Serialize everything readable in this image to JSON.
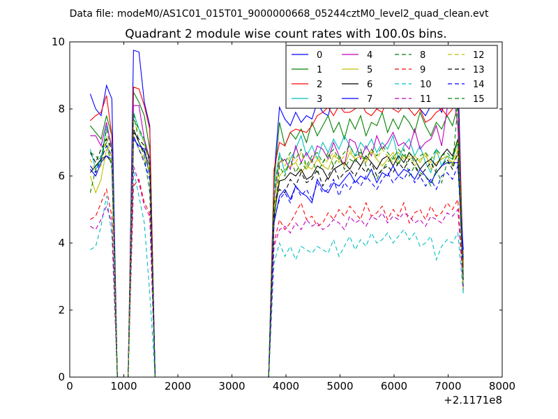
{
  "suptitle": "Data file: modeM0/AS1C01_015T01_9000000668_05244cztM0_level2_quad_clean.evt",
  "chart_data": {
    "type": "line",
    "title": "Quadrant 2 module wise count rates with 100.0s bins.",
    "xlabel": "",
    "ylabel": "",
    "x_offset_label": "+2.1171e8",
    "xlim": [
      0,
      8000
    ],
    "ylim": [
      0,
      10
    ],
    "x_ticks": [
      0,
      1000,
      2000,
      3000,
      4000,
      5000,
      6000,
      7000,
      8000
    ],
    "y_ticks": [
      0,
      2,
      4,
      6,
      8,
      10
    ],
    "grid": false,
    "legend_position": "top-right",
    "legend_columns": 4,
    "x": [
      380,
      480,
      580,
      680,
      780,
      880,
      980,
      1080,
      1180,
      1280,
      1380,
      1480,
      1580,
      1680,
      1780,
      1880,
      1980,
      2080,
      2180,
      2280,
      2380,
      2480,
      2580,
      2680,
      2780,
      2880,
      2980,
      3080,
      3180,
      3280,
      3380,
      3480,
      3580,
      3680,
      3780,
      3880,
      3980,
      4080,
      4180,
      4280,
      4380,
      4480,
      4580,
      4680,
      4780,
      4880,
      4980,
      5080,
      5180,
      5280,
      5380,
      5480,
      5580,
      5680,
      5780,
      5880,
      5980,
      6080,
      6180,
      6280,
      6380,
      6480,
      6580,
      6680,
      6780,
      6880,
      6980,
      7080,
      7180,
      7280
    ],
    "series": [
      {
        "name": "0",
        "color": "#0000ff",
        "dash": "solid",
        "values": [
          8.45,
          8.0,
          7.8,
          8.7,
          8.3,
          0,
          0,
          0,
          9.75,
          9.7,
          8.2,
          7.5,
          0,
          0,
          0,
          0,
          0,
          0,
          0,
          0,
          0,
          0,
          0,
          0,
          0,
          0,
          0,
          0,
          0,
          0,
          0,
          0,
          0,
          0,
          6.0,
          8.05,
          7.7,
          7.5,
          7.9,
          7.6,
          7.8,
          7.7,
          8.2,
          7.9,
          7.8,
          8.4,
          8.2,
          8.0,
          8.3,
          8.1,
          8.4,
          8.2,
          8.6,
          8.0,
          8.2,
          8.3,
          8.1,
          8.0,
          8.4,
          8.2,
          8.3,
          8.0,
          7.8,
          8.1,
          8.2,
          7.9,
          8.4,
          8.3,
          9.3,
          3.0
        ]
      },
      {
        "name": "1",
        "color": "#008000",
        "dash": "solid",
        "values": [
          7.5,
          7.3,
          7.1,
          7.8,
          7.2,
          0,
          0,
          0,
          8.5,
          8.2,
          7.8,
          6.8,
          0,
          0,
          0,
          0,
          0,
          0,
          0,
          0,
          0,
          0,
          0,
          0,
          0,
          0,
          0,
          0,
          0,
          0,
          0,
          0,
          0,
          0,
          5.8,
          7.6,
          6.9,
          7.3,
          7.1,
          7.4,
          7.0,
          7.6,
          7.2,
          7.5,
          7.8,
          7.3,
          7.6,
          7.1,
          7.7,
          7.4,
          7.8,
          7.2,
          7.6,
          7.5,
          7.9,
          7.3,
          7.7,
          7.4,
          7.8,
          7.6,
          7.3,
          7.9,
          7.5,
          7.2,
          7.6,
          7.4,
          7.8,
          7.5,
          8.1,
          3.5
        ]
      },
      {
        "name": "2",
        "color": "#ff0000",
        "dash": "solid",
        "values": [
          7.65,
          7.8,
          7.9,
          8.4,
          7.2,
          0,
          0,
          0,
          8.65,
          8.6,
          8.1,
          7.4,
          0,
          0,
          0,
          0,
          0,
          0,
          0,
          0,
          0,
          0,
          0,
          0,
          0,
          0,
          0,
          0,
          0,
          0,
          0,
          0,
          0,
          0,
          6.2,
          7.0,
          6.9,
          7.3,
          7.4,
          7.35,
          7.3,
          7.5,
          7.8,
          7.9,
          8.05,
          7.8,
          8.1,
          7.9,
          7.9,
          8.0,
          8.2,
          7.9,
          7.8,
          8.0,
          7.9,
          8.3,
          8.0,
          7.9,
          8.1,
          8.0,
          7.8,
          8.0,
          7.6,
          7.7,
          7.9,
          8.0,
          7.8,
          8.0,
          8.3,
          3.3
        ]
      },
      {
        "name": "3",
        "color": "#00bfbf",
        "dash": "solid",
        "values": [
          6.8,
          6.2,
          6.5,
          7.5,
          6.9,
          0,
          0,
          0,
          7.9,
          7.4,
          7.0,
          6.5,
          0,
          0,
          0,
          0,
          0,
          0,
          0,
          0,
          0,
          0,
          0,
          0,
          0,
          0,
          0,
          0,
          0,
          0,
          0,
          0,
          0,
          0,
          5.6,
          6.7,
          6.1,
          6.5,
          6.8,
          7.2,
          6.6,
          6.9,
          6.5,
          7.0,
          6.7,
          7.1,
          6.8,
          7.2,
          6.9,
          6.6,
          7.0,
          6.8,
          7.1,
          6.7,
          7.0,
          6.8,
          7.2,
          6.5,
          6.9,
          7.1,
          6.6,
          6.9,
          6.4,
          6.1,
          6.8,
          6.3,
          6.6,
          6.5,
          7.0,
          2.5
        ]
      },
      {
        "name": "4",
        "color": "#bf00bf",
        "dash": "solid",
        "values": [
          7.2,
          7.2,
          6.9,
          7.6,
          6.8,
          0,
          0,
          0,
          8.1,
          8.1,
          7.1,
          6.5,
          0,
          0,
          0,
          0,
          0,
          0,
          0,
          0,
          0,
          0,
          0,
          0,
          0,
          0,
          0,
          0,
          0,
          0,
          0,
          0,
          0,
          0,
          5.3,
          6.4,
          6.5,
          6.2,
          6.9,
          6.4,
          6.7,
          6.4,
          6.9,
          6.8,
          6.5,
          7.0,
          6.6,
          6.3,
          7.1,
          7.0,
          6.5,
          6.9,
          6.6,
          7.2,
          6.8,
          7.0,
          7.3,
          6.9,
          7.0,
          6.8,
          7.4,
          6.8,
          7.0,
          7.1,
          7.5,
          6.9,
          8.0,
          8.6,
          7.5,
          2.6
        ]
      },
      {
        "name": "5",
        "color": "#bfbf00",
        "dash": "solid",
        "values": [
          6.0,
          5.5,
          5.9,
          6.8,
          6.6,
          0,
          0,
          0,
          7.2,
          6.8,
          6.5,
          6.2,
          0,
          0,
          0,
          0,
          0,
          0,
          0,
          0,
          0,
          0,
          0,
          0,
          0,
          0,
          0,
          0,
          0,
          0,
          0,
          0,
          0,
          0,
          5.0,
          6.0,
          6.2,
          6.3,
          6.4,
          6.1,
          6.3,
          6.2,
          6.5,
          6.3,
          6.2,
          6.6,
          6.5,
          6.3,
          6.7,
          6.5,
          6.6,
          6.4,
          6.8,
          6.5,
          6.3,
          6.5,
          6.7,
          6.4,
          6.6,
          6.5,
          6.6,
          6.4,
          6.7,
          6.2,
          6.4,
          6.5,
          6.6,
          6.3,
          6.8,
          2.6
        ]
      },
      {
        "name": "6",
        "color": "#000000",
        "dash": "solid",
        "values": [
          6.1,
          6.3,
          6.5,
          6.6,
          6.4,
          0,
          0,
          0,
          7.4,
          7.0,
          6.7,
          6.3,
          0,
          0,
          0,
          0,
          0,
          0,
          0,
          0,
          0,
          0,
          0,
          0,
          0,
          0,
          0,
          0,
          0,
          0,
          0,
          0,
          0,
          0,
          4.8,
          5.85,
          5.9,
          6.1,
          6.0,
          6.2,
          5.9,
          6.0,
          6.3,
          6.2,
          5.9,
          6.2,
          6.3,
          6.4,
          6.2,
          6.5,
          6.3,
          6.6,
          6.4,
          6.2,
          6.5,
          6.6,
          6.3,
          6.6,
          6.4,
          6.7,
          6.5,
          6.2,
          6.4,
          6.5,
          6.3,
          6.6,
          6.8,
          6.6,
          7.1,
          2.7
        ]
      },
      {
        "name": "7",
        "color": "#0000ff",
        "dash": "solid",
        "values": [
          6.2,
          6.0,
          6.4,
          6.6,
          6.5,
          0,
          0,
          0,
          7.1,
          6.9,
          6.8,
          6.0,
          0,
          0,
          0,
          0,
          0,
          0,
          0,
          0,
          0,
          0,
          0,
          0,
          0,
          0,
          0,
          0,
          0,
          0,
          0,
          0,
          0,
          0,
          4.6,
          5.4,
          5.6,
          5.3,
          5.7,
          5.5,
          5.4,
          5.2,
          5.9,
          5.6,
          5.5,
          5.8,
          5.7,
          5.9,
          6.1,
          5.8,
          6.0,
          5.9,
          6.2,
          5.8,
          6.1,
          6.0,
          6.3,
          6.0,
          6.2,
          6.1,
          5.9,
          6.2,
          6.0,
          5.8,
          6.1,
          6.3,
          6.4,
          6.4,
          6.4,
          3.8
        ]
      },
      {
        "name": "8",
        "color": "#008000",
        "dash": "dashed",
        "values": [
          5.5,
          6.2,
          6.6,
          7.0,
          6.2,
          0,
          0,
          0,
          7.9,
          7.0,
          6.6,
          5.5,
          0,
          0,
          0,
          0,
          0,
          0,
          0,
          0,
          0,
          0,
          0,
          0,
          0,
          0,
          0,
          0,
          0,
          0,
          0,
          0,
          0,
          0,
          4.6,
          6.3,
          6.0,
          6.5,
          6.1,
          6.4,
          6.2,
          6.5,
          6.1,
          6.4,
          6.7,
          6.3,
          6.6,
          6.2,
          6.5,
          6.4,
          6.8,
          6.3,
          6.1,
          5.9,
          6.2,
          6.4,
          6.6,
          6.3,
          6.8,
          6.0,
          6.3,
          6.1,
          6.0,
          5.7,
          6.2,
          5.8,
          6.4,
          6.3,
          8.1,
          2.9
        ]
      },
      {
        "name": "9",
        "color": "#ff0000",
        "dash": "dashed",
        "values": [
          4.7,
          4.8,
          5.2,
          5.6,
          4.8,
          0,
          0,
          0,
          5.7,
          5.9,
          5.2,
          4.9,
          0,
          0,
          0,
          0,
          0,
          0,
          0,
          0,
          0,
          0,
          0,
          0,
          0,
          0,
          0,
          0,
          0,
          0,
          0,
          0,
          0,
          0,
          4.0,
          4.7,
          4.4,
          4.6,
          4.9,
          5.2,
          4.7,
          4.8,
          4.5,
          4.6,
          4.9,
          4.7,
          5.0,
          4.8,
          5.1,
          4.9,
          4.7,
          5.2,
          4.8,
          4.9,
          5.1,
          4.7,
          5.0,
          4.8,
          5.2,
          4.6,
          4.9,
          5.0,
          4.7,
          5.1,
          4.8,
          4.9,
          5.2,
          5.0,
          5.3,
          2.8
        ]
      },
      {
        "name": "10",
        "color": "#00bfbf",
        "dash": "dashed",
        "values": [
          3.8,
          3.9,
          4.5,
          5.4,
          4.2,
          0,
          0,
          0,
          6.2,
          5.4,
          4.6,
          2.5,
          0,
          0,
          0,
          0,
          0,
          0,
          0,
          0,
          0,
          0,
          0,
          0,
          0,
          0,
          0,
          0,
          0,
          0,
          0,
          0,
          0,
          0,
          3.4,
          4.0,
          3.6,
          3.9,
          3.5,
          3.9,
          3.8,
          3.7,
          3.9,
          3.8,
          3.7,
          4.1,
          3.6,
          3.9,
          4.2,
          3.8,
          4.1,
          3.9,
          4.3,
          4.0,
          4.1,
          4.3,
          4.0,
          4.2,
          4.4,
          4.1,
          4.3,
          3.9,
          4.0,
          4.2,
          3.5,
          3.9,
          4.1,
          4.0,
          4.3,
          2.5
        ]
      },
      {
        "name": "11",
        "color": "#bf00bf",
        "dash": "dashed",
        "values": [
          4.5,
          4.4,
          4.7,
          5.1,
          4.6,
          0,
          0,
          0,
          6.3,
          5.8,
          5.1,
          4.8,
          0,
          0,
          0,
          0,
          0,
          0,
          0,
          0,
          0,
          0,
          0,
          0,
          0,
          0,
          0,
          0,
          0,
          0,
          0,
          0,
          0,
          0,
          3.9,
          4.4,
          4.5,
          4.3,
          4.6,
          4.4,
          4.7,
          4.5,
          4.6,
          4.4,
          4.5,
          4.7,
          4.6,
          4.4,
          4.8,
          4.6,
          4.7,
          4.5,
          4.8,
          4.7,
          4.9,
          4.6,
          4.8,
          4.7,
          4.9,
          4.8,
          4.6,
          4.7,
          4.5,
          4.8,
          4.7,
          4.6,
          4.9,
          4.8,
          5.0,
          2.7
        ]
      },
      {
        "name": "12",
        "color": "#bfbf00",
        "dash": "dashed",
        "values": [
          6.5,
          6.1,
          6.3,
          7.2,
          6.4,
          0,
          0,
          0,
          7.6,
          7.3,
          7.0,
          6.0,
          0,
          0,
          0,
          0,
          0,
          0,
          0,
          0,
          0,
          0,
          0,
          0,
          0,
          0,
          0,
          0,
          0,
          0,
          0,
          0,
          0,
          0,
          5.1,
          6.5,
          6.3,
          6.6,
          6.4,
          6.7,
          6.2,
          6.5,
          6.6,
          6.3,
          6.5,
          6.7,
          6.4,
          6.6,
          6.8,
          6.5,
          6.6,
          6.4,
          6.7,
          6.5,
          6.8,
          6.6,
          6.4,
          6.7,
          6.5,
          6.6,
          6.3,
          6.5,
          6.6,
          6.4,
          6.7,
          6.5,
          6.6,
          6.4,
          7.0,
          2.8
        ]
      },
      {
        "name": "13",
        "color": "#000000",
        "dash": "dashed",
        "values": [
          6.7,
          6.4,
          6.8,
          7.1,
          6.8,
          0,
          0,
          0,
          7.3,
          7.1,
          6.9,
          6.5,
          0,
          0,
          0,
          0,
          0,
          0,
          0,
          0,
          0,
          0,
          0,
          0,
          0,
          0,
          0,
          0,
          0,
          0,
          0,
          0,
          0,
          0,
          5.2,
          5.6,
          5.5,
          5.9,
          5.7,
          6.1,
          5.8,
          5.9,
          6.2,
          5.7,
          6.0,
          6.3,
          5.9,
          6.1,
          6.2,
          6.0,
          6.3,
          6.1,
          6.4,
          6.0,
          6.2,
          6.3,
          6.1,
          6.4,
          6.2,
          6.5,
          6.3,
          6.0,
          6.2,
          6.4,
          6.1,
          6.3,
          6.5,
          6.2,
          6.7,
          2.9
        ]
      },
      {
        "name": "14",
        "color": "#0000ff",
        "dash": "dashed",
        "values": [
          6.3,
          6.1,
          6.5,
          6.9,
          6.6,
          0,
          0,
          0,
          7.2,
          6.8,
          6.4,
          5.9,
          0,
          0,
          0,
          0,
          0,
          0,
          0,
          0,
          0,
          0,
          0,
          0,
          0,
          0,
          0,
          0,
          0,
          0,
          0,
          0,
          0,
          0,
          4.7,
          5.3,
          5.5,
          5.2,
          5.7,
          5.4,
          5.6,
          5.3,
          5.8,
          5.5,
          5.6,
          5.9,
          5.4,
          5.8,
          5.6,
          5.9,
          5.7,
          6.0,
          5.8,
          5.6,
          5.9,
          6.1,
          5.8,
          6.0,
          5.9,
          6.2,
          5.8,
          6.0,
          5.7,
          5.9,
          5.6,
          6.0,
          6.1,
          5.9,
          6.3,
          3.5
        ]
      },
      {
        "name": "15",
        "color": "#008000",
        "dash": "dashed",
        "values": [
          6.7,
          6.6,
          6.4,
          7.4,
          6.7,
          0,
          0,
          0,
          7.7,
          7.4,
          7.1,
          6.3,
          0,
          0,
          0,
          0,
          0,
          0,
          0,
          0,
          0,
          0,
          0,
          0,
          0,
          0,
          0,
          0,
          0,
          0,
          0,
          0,
          0,
          0,
          5.5,
          6.6,
          6.4,
          6.7,
          6.5,
          6.8,
          6.3,
          6.6,
          6.7,
          6.4,
          6.6,
          6.8,
          6.5,
          6.7,
          6.9,
          6.6,
          6.7,
          6.5,
          6.8,
          6.6,
          6.9,
          6.7,
          6.5,
          6.8,
          6.6,
          6.7,
          6.4,
          6.6,
          6.7,
          6.5,
          6.8,
          6.6,
          6.7,
          6.5,
          7.1,
          2.9
        ]
      }
    ]
  }
}
